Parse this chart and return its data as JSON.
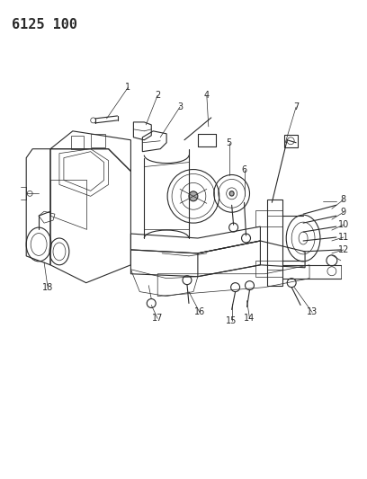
{
  "title_text": "6125 100",
  "background_color": "#ffffff",
  "line_color": "#2a2a2a",
  "fig_width": 4.08,
  "fig_height": 5.33,
  "dpi": 100
}
